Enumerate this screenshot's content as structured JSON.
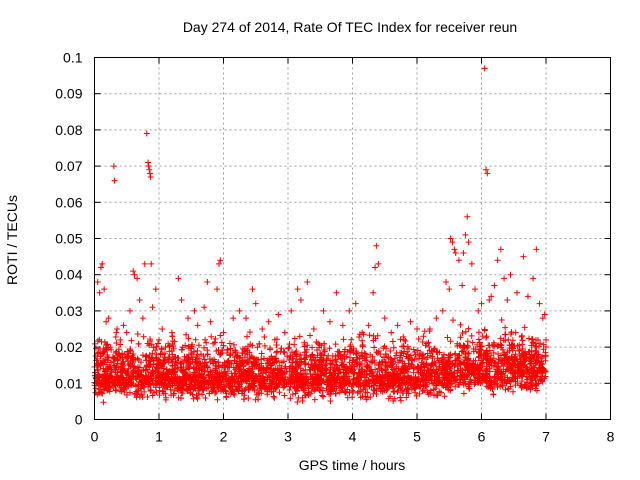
{
  "chart_data": {
    "type": "scatter",
    "title": "Day 274 of 2014, Rate Of TEC Index for receiver reun",
    "xlabel": "GPS time / hours",
    "ylabel": "ROTI / TECUs",
    "xlim": [
      0,
      8
    ],
    "ylim": [
      0,
      0.1
    ],
    "x_ticks": [
      0,
      1,
      2,
      3,
      4,
      5,
      6,
      7,
      8
    ],
    "y_ticks": [
      0,
      0.01,
      0.02,
      0.03,
      0.04,
      0.05,
      0.06,
      0.07,
      0.08,
      0.09,
      0.1
    ],
    "x_tick_labels": [
      "0",
      "1",
      "2",
      "3",
      "4",
      "5",
      "6",
      "7",
      "8"
    ],
    "y_tick_labels": [
      "0",
      "0.01",
      "0.02",
      "0.03",
      "0.04",
      "0.05",
      "0.06",
      "0.07",
      "0.08",
      "0.09",
      "0.1"
    ],
    "grid": true,
    "marker": "plus",
    "marker_color": "#ff0000",
    "series": [
      {
        "name": "ROTI",
        "points": [
          [
            0.05,
            0.038
          ],
          [
            0.08,
            0.035
          ],
          [
            0.1,
            0.042
          ],
          [
            0.12,
            0.043
          ],
          [
            0.15,
            0.036
          ],
          [
            0.18,
            0.027
          ],
          [
            0.22,
            0.028
          ],
          [
            0.3,
            0.07
          ],
          [
            0.31,
            0.066
          ],
          [
            0.35,
            0.025
          ],
          [
            0.4,
            0.022
          ],
          [
            0.45,
            0.026
          ],
          [
            0.5,
            0.024
          ],
          [
            0.55,
            0.03
          ],
          [
            0.6,
            0.041
          ],
          [
            0.62,
            0.04
          ],
          [
            0.66,
            0.039
          ],
          [
            0.7,
            0.033
          ],
          [
            0.75,
            0.028
          ],
          [
            0.78,
            0.043
          ],
          [
            0.81,
            0.079
          ],
          [
            0.83,
            0.071
          ],
          [
            0.84,
            0.07
          ],
          [
            0.85,
            0.069
          ],
          [
            0.86,
            0.068
          ],
          [
            0.87,
            0.067
          ],
          [
            0.88,
            0.043
          ],
          [
            0.9,
            0.031
          ],
          [
            0.95,
            0.036
          ],
          [
            1.0,
            0.022
          ],
          [
            1.05,
            0.025
          ],
          [
            1.1,
            0.02
          ],
          [
            1.2,
            0.024
          ],
          [
            1.3,
            0.039
          ],
          [
            1.35,
            0.033
          ],
          [
            1.45,
            0.028
          ],
          [
            1.55,
            0.03
          ],
          [
            1.6,
            0.026
          ],
          [
            1.7,
            0.031
          ],
          [
            1.75,
            0.038
          ],
          [
            1.8,
            0.027
          ],
          [
            1.9,
            0.036
          ],
          [
            1.93,
            0.043
          ],
          [
            1.95,
            0.044
          ],
          [
            2.0,
            0.024
          ],
          [
            2.1,
            0.021
          ],
          [
            2.15,
            0.028
          ],
          [
            2.25,
            0.03
          ],
          [
            2.35,
            0.028
          ],
          [
            2.45,
            0.036
          ],
          [
            2.5,
            0.032
          ],
          [
            2.6,
            0.025
          ],
          [
            2.7,
            0.027
          ],
          [
            2.85,
            0.029
          ],
          [
            2.95,
            0.024
          ],
          [
            3.05,
            0.03
          ],
          [
            3.15,
            0.036
          ],
          [
            3.2,
            0.033
          ],
          [
            3.3,
            0.038
          ],
          [
            3.4,
            0.025
          ],
          [
            3.55,
            0.03
          ],
          [
            3.65,
            0.027
          ],
          [
            3.75,
            0.035
          ],
          [
            3.85,
            0.026
          ],
          [
            3.95,
            0.03
          ],
          [
            4.05,
            0.032
          ],
          [
            4.15,
            0.024
          ],
          [
            4.25,
            0.026
          ],
          [
            4.32,
            0.035
          ],
          [
            4.35,
            0.042
          ],
          [
            4.37,
            0.048
          ],
          [
            4.4,
            0.043
          ],
          [
            4.5,
            0.028
          ],
          [
            4.6,
            0.024
          ],
          [
            4.7,
            0.026
          ],
          [
            4.8,
            0.022
          ],
          [
            4.9,
            0.027
          ],
          [
            5.0,
            0.025
          ],
          [
            5.1,
            0.023
          ],
          [
            5.2,
            0.025
          ],
          [
            5.3,
            0.028
          ],
          [
            5.4,
            0.03
          ],
          [
            5.45,
            0.038
          ],
          [
            5.5,
            0.036
          ],
          [
            5.52,
            0.05
          ],
          [
            5.55,
            0.049
          ],
          [
            5.58,
            0.047
          ],
          [
            5.6,
            0.046
          ],
          [
            5.65,
            0.044
          ],
          [
            5.7,
            0.037
          ],
          [
            5.72,
            0.046
          ],
          [
            5.75,
            0.051
          ],
          [
            5.78,
            0.056
          ],
          [
            5.8,
            0.049
          ],
          [
            5.85,
            0.043
          ],
          [
            5.9,
            0.036
          ],
          [
            5.95,
            0.03
          ],
          [
            6.0,
            0.032
          ],
          [
            6.05,
            0.097
          ],
          [
            6.07,
            0.069
          ],
          [
            6.09,
            0.068
          ],
          [
            6.12,
            0.033
          ],
          [
            6.15,
            0.034
          ],
          [
            6.2,
            0.037
          ],
          [
            6.25,
            0.044
          ],
          [
            6.3,
            0.047
          ],
          [
            6.35,
            0.039
          ],
          [
            6.4,
            0.033
          ],
          [
            6.45,
            0.04
          ],
          [
            6.55,
            0.035
          ],
          [
            6.65,
            0.045
          ],
          [
            6.72,
            0.034
          ],
          [
            6.8,
            0.039
          ],
          [
            6.85,
            0.047
          ],
          [
            6.9,
            0.032
          ],
          [
            6.95,
            0.028
          ],
          [
            6.98,
            0.029
          ],
          [
            7.0,
            0.022
          ]
        ],
        "dense_band": {
          "x_range": [
            0,
            7
          ],
          "lower": 0.004,
          "upper": 0.026,
          "mean": 0.012,
          "point_count": 3600
        }
      }
    ]
  }
}
